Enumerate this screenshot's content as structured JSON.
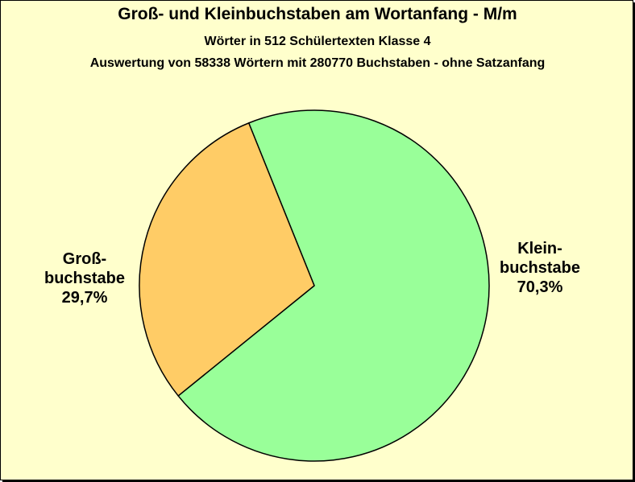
{
  "chart_data": {
    "type": "pie",
    "title": "Groß- und  Kleinbuchstaben am Wortanfang - M/m",
    "subtitles": [
      "Wörter in 512 Schülertexten Klasse 4",
      "Auswertung von 58338 Wörtern mit 280770 Buchstaben - ohne Satzanfang"
    ],
    "slices": [
      {
        "label_lines": [
          "Klein-",
          "buchstabe"
        ],
        "percent_label": "70,3%",
        "value": 70.3,
        "color": "#99ff99"
      },
      {
        "label_lines": [
          "Groß-",
          "buchstabe"
        ],
        "percent_label": "29,7%",
        "value": 29.7,
        "color": "#ffcc66"
      }
    ]
  }
}
